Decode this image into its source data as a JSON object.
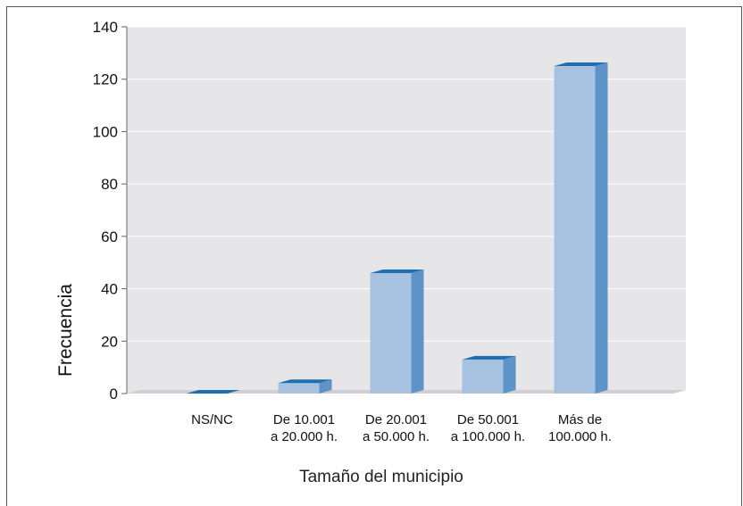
{
  "chart_data": {
    "type": "bar",
    "title": "",
    "xlabel": "Tamaño del municipio",
    "ylabel": "Frecuencia",
    "categories": [
      [
        "NS/NC"
      ],
      [
        "De 10.001",
        "a 20.000 h."
      ],
      [
        "De 20.001",
        "a 50.000 h."
      ],
      [
        "De 50.001",
        "a 100.000 h."
      ],
      [
        "Más de",
        "100.000 h."
      ]
    ],
    "values": [
      0,
      4,
      46,
      13,
      125
    ],
    "ylim": [
      0,
      140
    ],
    "yticks": [
      0,
      20,
      40,
      60,
      80,
      100,
      120,
      140
    ],
    "grid": true,
    "legend": "none",
    "colors": {
      "plot_bg": "#e6e6e9",
      "grid": "#ffffff",
      "bar_front": "#a7c1e1",
      "bar_side": "#5d93c6",
      "bar_top": "#1f6fb0",
      "axis": "#666666"
    }
  }
}
